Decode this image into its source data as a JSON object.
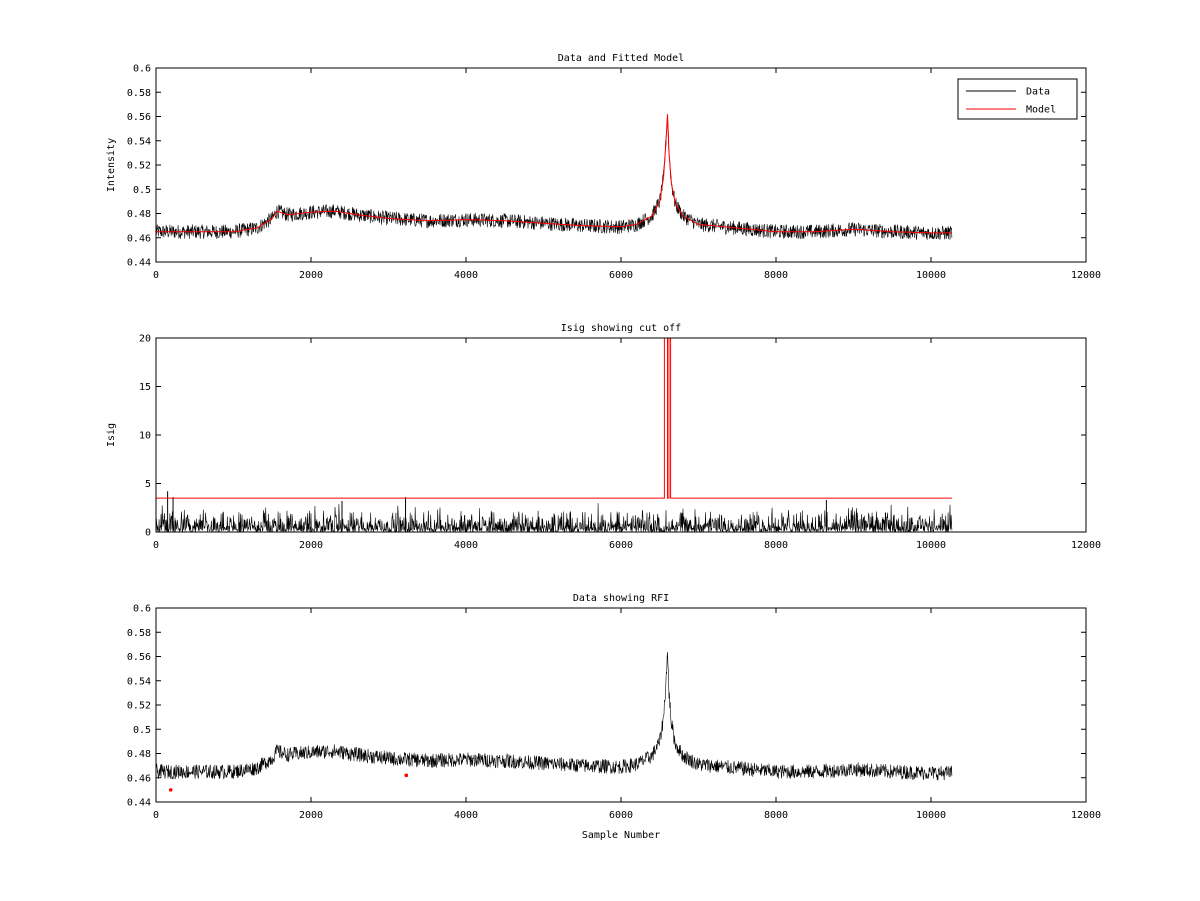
{
  "chart_data": [
    {
      "type": "line",
      "title": "Data and Fitted Model",
      "xlabel": "",
      "ylabel": "Intensity",
      "xlim": [
        0,
        12000
      ],
      "ylim": [
        0.44,
        0.6
      ],
      "xticks": [
        0,
        2000,
        4000,
        6000,
        8000,
        10000,
        12000
      ],
      "yticks": [
        0.44,
        0.46,
        0.48,
        0.5,
        0.52,
        0.54,
        0.56,
        0.58,
        0.6
      ],
      "xtick_labels": [
        "0",
        "2000",
        "4000",
        "6000",
        "8000",
        "10000",
        "12000"
      ],
      "ytick_labels": [
        "0.44",
        "0.46",
        "0.48",
        "0.5",
        "0.52",
        "0.54",
        "0.56",
        "0.58",
        "0.6"
      ],
      "grid": false,
      "legend": {
        "placement": "top-right",
        "entries": [
          "Data",
          "Model"
        ]
      },
      "series": [
        {
          "name": "Data",
          "color": "#000000",
          "kind": "noisy",
          "noise_amplitude": 0.006,
          "x": [
            0,
            500,
            1000,
            1300,
            1500,
            1560,
            1700,
            2000,
            2300,
            2600,
            3000,
            3500,
            4000,
            4500,
            5000,
            5500,
            6000,
            6200,
            6400,
            6500,
            6550,
            6580,
            6600,
            6620,
            6650,
            6700,
            6800,
            7000,
            7500,
            8000,
            8500,
            9000,
            9500,
            10000,
            10270
          ],
          "y": [
            0.465,
            0.465,
            0.465,
            0.468,
            0.476,
            0.482,
            0.479,
            0.481,
            0.482,
            0.479,
            0.476,
            0.474,
            0.475,
            0.474,
            0.472,
            0.47,
            0.469,
            0.471,
            0.478,
            0.49,
            0.51,
            0.54,
            0.562,
            0.53,
            0.505,
            0.488,
            0.478,
            0.471,
            0.468,
            0.465,
            0.465,
            0.467,
            0.465,
            0.464,
            0.464
          ]
        },
        {
          "name": "Model",
          "color": "#ff0000",
          "kind": "line",
          "x": [
            0,
            500,
            1000,
            1300,
            1500,
            1560,
            1700,
            2000,
            2300,
            2600,
            3000,
            3500,
            4000,
            4500,
            5000,
            5500,
            6000,
            6200,
            6400,
            6500,
            6550,
            6580,
            6600,
            6620,
            6650,
            6700,
            6800,
            7000,
            7500,
            8000,
            8500,
            9000,
            9500,
            10000,
            10270
          ],
          "y": [
            0.465,
            0.465,
            0.465,
            0.468,
            0.476,
            0.482,
            0.479,
            0.481,
            0.482,
            0.479,
            0.476,
            0.474,
            0.475,
            0.474,
            0.472,
            0.47,
            0.469,
            0.471,
            0.478,
            0.49,
            0.51,
            0.54,
            0.562,
            0.53,
            0.505,
            0.488,
            0.478,
            0.471,
            0.468,
            0.465,
            0.465,
            0.467,
            0.465,
            0.464,
            0.464
          ]
        }
      ]
    },
    {
      "type": "line",
      "title": "Isig showing cut off",
      "xlabel": "",
      "ylabel": "Isig",
      "xlim": [
        0,
        12000
      ],
      "ylim": [
        0,
        20
      ],
      "xticks": [
        0,
        2000,
        4000,
        6000,
        8000,
        10000,
        12000
      ],
      "yticks": [
        0,
        5,
        10,
        15,
        20
      ],
      "xtick_labels": [
        "0",
        "2000",
        "4000",
        "6000",
        "8000",
        "10000",
        "12000"
      ],
      "ytick_labels": [
        "0",
        "5",
        "10",
        "15",
        "20"
      ],
      "grid": false,
      "series": [
        {
          "name": "",
          "color": "#000000",
          "kind": "spiky",
          "x_range": [
            0,
            10270
          ],
          "typical_max": 2.5,
          "spikes": [
            {
              "x": 150,
              "y": 4.2
            },
            {
              "x": 220,
              "y": 3.6
            },
            {
              "x": 3220,
              "y": 3.6
            },
            {
              "x": 2400,
              "y": 3.2
            },
            {
              "x": 8650,
              "y": 3.3
            }
          ]
        },
        {
          "name": "",
          "color": "#ff0000",
          "kind": "line",
          "x": [
            0,
            6560,
            6560,
            6600,
            6600,
            6620,
            6620,
            6640,
            6640,
            10270
          ],
          "y": [
            3.5,
            3.5,
            20,
            20,
            3.5,
            3.5,
            20,
            20,
            3.5,
            3.5
          ]
        }
      ]
    },
    {
      "type": "line",
      "title": "Data showing RFI",
      "xlabel": "Sample Number",
      "ylabel": "",
      "xlim": [
        0,
        12000
      ],
      "ylim": [
        0.44,
        0.6
      ],
      "xticks": [
        0,
        2000,
        4000,
        6000,
        8000,
        10000,
        12000
      ],
      "yticks": [
        0.44,
        0.46,
        0.48,
        0.5,
        0.52,
        0.54,
        0.56,
        0.58,
        0.6
      ],
      "xtick_labels": [
        "0",
        "2000",
        "4000",
        "6000",
        "8000",
        "10000",
        "12000"
      ],
      "ytick_labels": [
        "0.44",
        "0.46",
        "0.48",
        "0.5",
        "0.52",
        "0.54",
        "0.56",
        "0.58",
        "0.6"
      ],
      "grid": false,
      "series": [
        {
          "name": "",
          "color": "#000000",
          "kind": "noisy",
          "noise_amplitude": 0.006,
          "x": [
            0,
            500,
            1000,
            1300,
            1500,
            1560,
            1700,
            2000,
            2300,
            2600,
            3000,
            3500,
            4000,
            4500,
            5000,
            5500,
            6000,
            6200,
            6400,
            6500,
            6550,
            6580,
            6600,
            6620,
            6650,
            6700,
            6800,
            7000,
            7500,
            8000,
            8500,
            9000,
            9500,
            10000,
            10270
          ],
          "y": [
            0.465,
            0.465,
            0.465,
            0.468,
            0.476,
            0.482,
            0.479,
            0.481,
            0.482,
            0.479,
            0.476,
            0.474,
            0.475,
            0.474,
            0.472,
            0.47,
            0.469,
            0.471,
            0.478,
            0.49,
            0.51,
            0.54,
            0.562,
            0.53,
            0.505,
            0.488,
            0.478,
            0.471,
            0.468,
            0.465,
            0.465,
            0.467,
            0.465,
            0.464,
            0.464
          ]
        },
        {
          "name": "",
          "color": "#ff0000",
          "kind": "markers",
          "x": [
            190,
            3230
          ],
          "y": [
            0.45,
            0.462
          ]
        }
      ]
    }
  ]
}
